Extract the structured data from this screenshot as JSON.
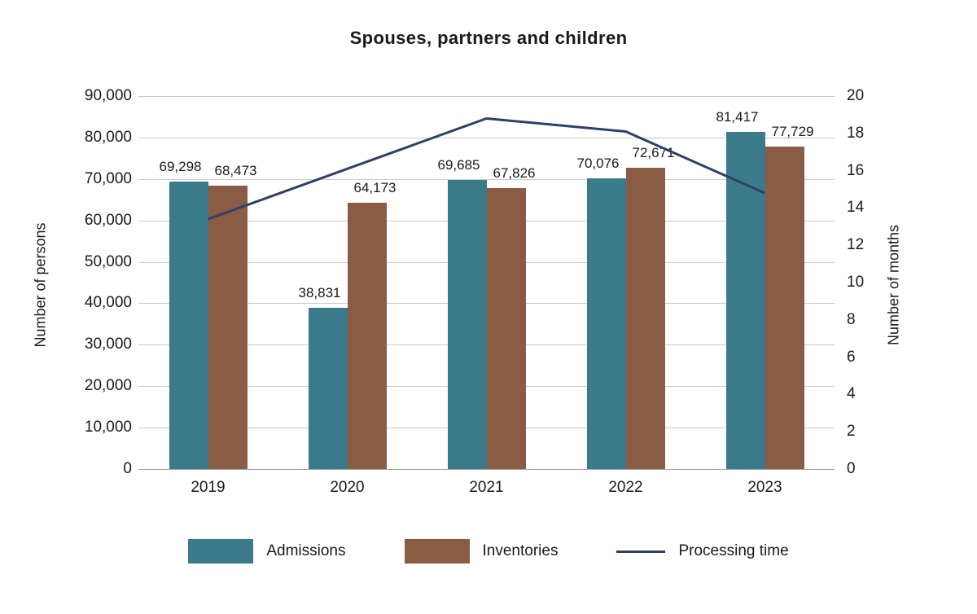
{
  "chart_data": {
    "type": "bar",
    "subtype": "grouped-bars-with-line",
    "title": "Spouses, partners and children",
    "categories": [
      "2019",
      "2020",
      "2021",
      "2022",
      "2023"
    ],
    "bar_series": [
      {
        "name": "Admissions",
        "color": "#3a7a8a",
        "values": [
          69298,
          38831,
          69685,
          70076,
          81417
        ],
        "labels": [
          "69,298",
          "38,831",
          "69,685",
          "70,076",
          "81,417"
        ]
      },
      {
        "name": "Inventories",
        "color": "#8a5c44",
        "values": [
          68473,
          64173,
          67826,
          72671,
          77729
        ],
        "labels": [
          "68,473",
          "64,173",
          "67,826",
          "72,671",
          "77,729"
        ]
      }
    ],
    "line_series": {
      "name": "Processing time",
      "color": "#303f67",
      "values": [
        13.4,
        16.1,
        18.8,
        18.1,
        14.8
      ]
    },
    "left_axis": {
      "label": "Number of persons",
      "min": 0,
      "max": 90000,
      "step": 10000,
      "ticks": [
        "90,000",
        "80,000",
        "70,000",
        "60,000",
        "50,000",
        "40,000",
        "30,000",
        "20,000",
        "10,000",
        "0"
      ]
    },
    "right_axis": {
      "label": "Number of months",
      "min": 0,
      "max": 20,
      "step": 2,
      "ticks": [
        "20",
        "18",
        "16",
        "14",
        "12",
        "10",
        "8",
        "6",
        "4",
        "2",
        "0"
      ]
    },
    "grid": true,
    "legend_position": "bottom"
  },
  "legend": {
    "items": [
      {
        "label": "Admissions",
        "color": "#3a7a8a",
        "type": "rect"
      },
      {
        "label": "Inventories",
        "color": "#8a5c44",
        "type": "rect"
      },
      {
        "label": "Processing time",
        "color": "#303f67",
        "type": "line"
      }
    ]
  }
}
